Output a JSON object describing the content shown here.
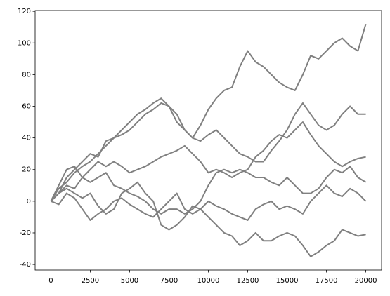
{
  "chart_data": {
    "type": "line",
    "x": [
      0,
      500,
      1000,
      1500,
      2000,
      2500,
      3000,
      3500,
      4000,
      4500,
      5000,
      5500,
      6000,
      6500,
      7000,
      7500,
      8000,
      8500,
      9000,
      9500,
      10000,
      10500,
      11000,
      11500,
      12000,
      12500,
      13000,
      13500,
      14000,
      14500,
      15000,
      15500,
      16000,
      16500,
      17000,
      17500,
      18000,
      18500,
      19000,
      19500,
      20000
    ],
    "series": [
      {
        "color": "#808080",
        "values": [
          0,
          5,
          15,
          20,
          25,
          30,
          28,
          38,
          40,
          45,
          50,
          55,
          58,
          62,
          65,
          60,
          50,
          45,
          40,
          48,
          58,
          65,
          70,
          72,
          85,
          95,
          88,
          85,
          80,
          75,
          72,
          70,
          80,
          92,
          90,
          95,
          100,
          103,
          98,
          95,
          112
        ]
      },
      {
        "color": "#808080",
        "values": [
          0,
          8,
          12,
          18,
          22,
          25,
          30,
          35,
          40,
          42,
          45,
          50,
          55,
          58,
          62,
          60,
          55,
          45,
          40,
          38,
          42,
          45,
          40,
          35,
          30,
          28,
          25,
          25,
          32,
          38,
          45,
          55,
          62,
          55,
          48,
          45,
          48,
          55,
          60,
          55,
          55
        ]
      },
      {
        "color": "#808080",
        "values": [
          0,
          5,
          10,
          8,
          15,
          20,
          25,
          22,
          25,
          22,
          18,
          20,
          22,
          25,
          28,
          30,
          32,
          35,
          30,
          25,
          18,
          20,
          18,
          15,
          18,
          20,
          28,
          32,
          38,
          42,
          40,
          45,
          50,
          42,
          35,
          30,
          25,
          22,
          25,
          27,
          28
        ]
      },
      {
        "color": "#808080",
        "values": [
          0,
          10,
          20,
          22,
          15,
          12,
          15,
          18,
          10,
          8,
          5,
          3,
          0,
          -5,
          -8,
          -5,
          -5,
          -8,
          -5,
          0,
          10,
          18,
          20,
          18,
          20,
          18,
          15,
          15,
          12,
          10,
          15,
          10,
          5,
          5,
          8,
          15,
          20,
          18,
          22,
          15,
          12
        ]
      },
      {
        "color": "#808080",
        "values": [
          0,
          -2,
          5,
          2,
          -5,
          -12,
          -8,
          -5,
          0,
          2,
          -2,
          -5,
          -8,
          -10,
          -5,
          0,
          5,
          -5,
          -8,
          -5,
          0,
          -3,
          -5,
          -8,
          -10,
          -12,
          -5,
          -2,
          0,
          -5,
          -3,
          -5,
          -8,
          0,
          5,
          10,
          5,
          3,
          8,
          5,
          0
        ]
      },
      {
        "color": "#808080",
        "values": [
          0,
          5,
          8,
          5,
          2,
          5,
          -3,
          -8,
          -5,
          5,
          8,
          12,
          5,
          0,
          -15,
          -18,
          -15,
          -10,
          -3,
          -5,
          -10,
          -15,
          -20,
          -22,
          -28,
          -25,
          -20,
          -25,
          -25,
          -22,
          -20,
          -22,
          -28,
          -35,
          -32,
          -28,
          -25,
          -18,
          -20,
          -22,
          -21
        ]
      }
    ],
    "xlim": [
      -1000,
      21000
    ],
    "ylim": [
      -43.5,
      120.5
    ],
    "xticks": [
      0,
      2500,
      5000,
      7500,
      10000,
      12500,
      15000,
      17500,
      20000
    ],
    "yticks": [
      -40,
      -20,
      0,
      20,
      40,
      60,
      80,
      100,
      120
    ]
  }
}
